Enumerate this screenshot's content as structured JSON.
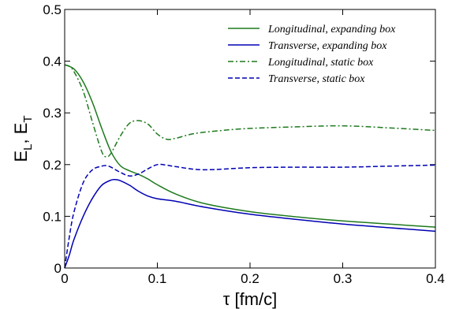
{
  "chart_data": {
    "type": "line",
    "xlabel": "τ [fm/c]",
    "ylabel_parts": [
      "E",
      "L",
      ", E",
      "T"
    ],
    "xlim": [
      0,
      0.4
    ],
    "ylim": [
      0,
      0.5
    ],
    "x_ticks": [
      "0",
      "0.1",
      "0.2",
      "0.3",
      "0.4"
    ],
    "y_ticks": [
      "0",
      "0.1",
      "0.2",
      "0.3",
      "0.4",
      "0.5"
    ],
    "grid": false,
    "legend_position": "top-right",
    "series": [
      {
        "name": "Longitudinal, expanding box",
        "color": "#1e7a1e",
        "style": "solid",
        "x": [
          0,
          0.01,
          0.02,
          0.03,
          0.04,
          0.05,
          0.06,
          0.07,
          0.08,
          0.09,
          0.1,
          0.12,
          0.15,
          0.2,
          0.25,
          0.3,
          0.35,
          0.4
        ],
        "y": [
          0.393,
          0.385,
          0.36,
          0.32,
          0.27,
          0.225,
          0.198,
          0.188,
          0.181,
          0.172,
          0.161,
          0.143,
          0.125,
          0.109,
          0.099,
          0.091,
          0.085,
          0.079
        ]
      },
      {
        "name": "Transverse, expanding box",
        "color": "#0000b4",
        "style": "solid",
        "x": [
          0,
          0.005,
          0.01,
          0.02,
          0.03,
          0.04,
          0.05,
          0.055,
          0.06,
          0.07,
          0.08,
          0.09,
          0.1,
          0.12,
          0.15,
          0.2,
          0.25,
          0.3,
          0.35,
          0.4
        ],
        "y": [
          0,
          0.025,
          0.055,
          0.1,
          0.135,
          0.16,
          0.17,
          0.171,
          0.169,
          0.16,
          0.148,
          0.139,
          0.134,
          0.129,
          0.118,
          0.104,
          0.094,
          0.085,
          0.078,
          0.071
        ]
      },
      {
        "name": "Longitudinal, static box",
        "color": "#1e7a1e",
        "style": "dashdot",
        "x": [
          0,
          0.005,
          0.01,
          0.02,
          0.03,
          0.04,
          0.045,
          0.05,
          0.06,
          0.07,
          0.08,
          0.09,
          0.1,
          0.11,
          0.12,
          0.14,
          0.17,
          0.2,
          0.25,
          0.3,
          0.35,
          0.4
        ],
        "y": [
          0.393,
          0.39,
          0.38,
          0.342,
          0.282,
          0.225,
          0.215,
          0.222,
          0.255,
          0.28,
          0.285,
          0.278,
          0.259,
          0.249,
          0.251,
          0.26,
          0.266,
          0.27,
          0.273,
          0.275,
          0.271,
          0.266
        ]
      },
      {
        "name": "Transverse, static box",
        "color": "#0000b4",
        "style": "dashed",
        "x": [
          0,
          0.005,
          0.01,
          0.02,
          0.03,
          0.04,
          0.045,
          0.05,
          0.06,
          0.07,
          0.08,
          0.09,
          0.1,
          0.11,
          0.12,
          0.15,
          0.2,
          0.25,
          0.3,
          0.35,
          0.4
        ],
        "y": [
          0,
          0.06,
          0.108,
          0.165,
          0.19,
          0.197,
          0.198,
          0.195,
          0.185,
          0.178,
          0.182,
          0.192,
          0.2,
          0.199,
          0.196,
          0.19,
          0.194,
          0.195,
          0.195,
          0.197,
          0.199
        ]
      }
    ]
  }
}
